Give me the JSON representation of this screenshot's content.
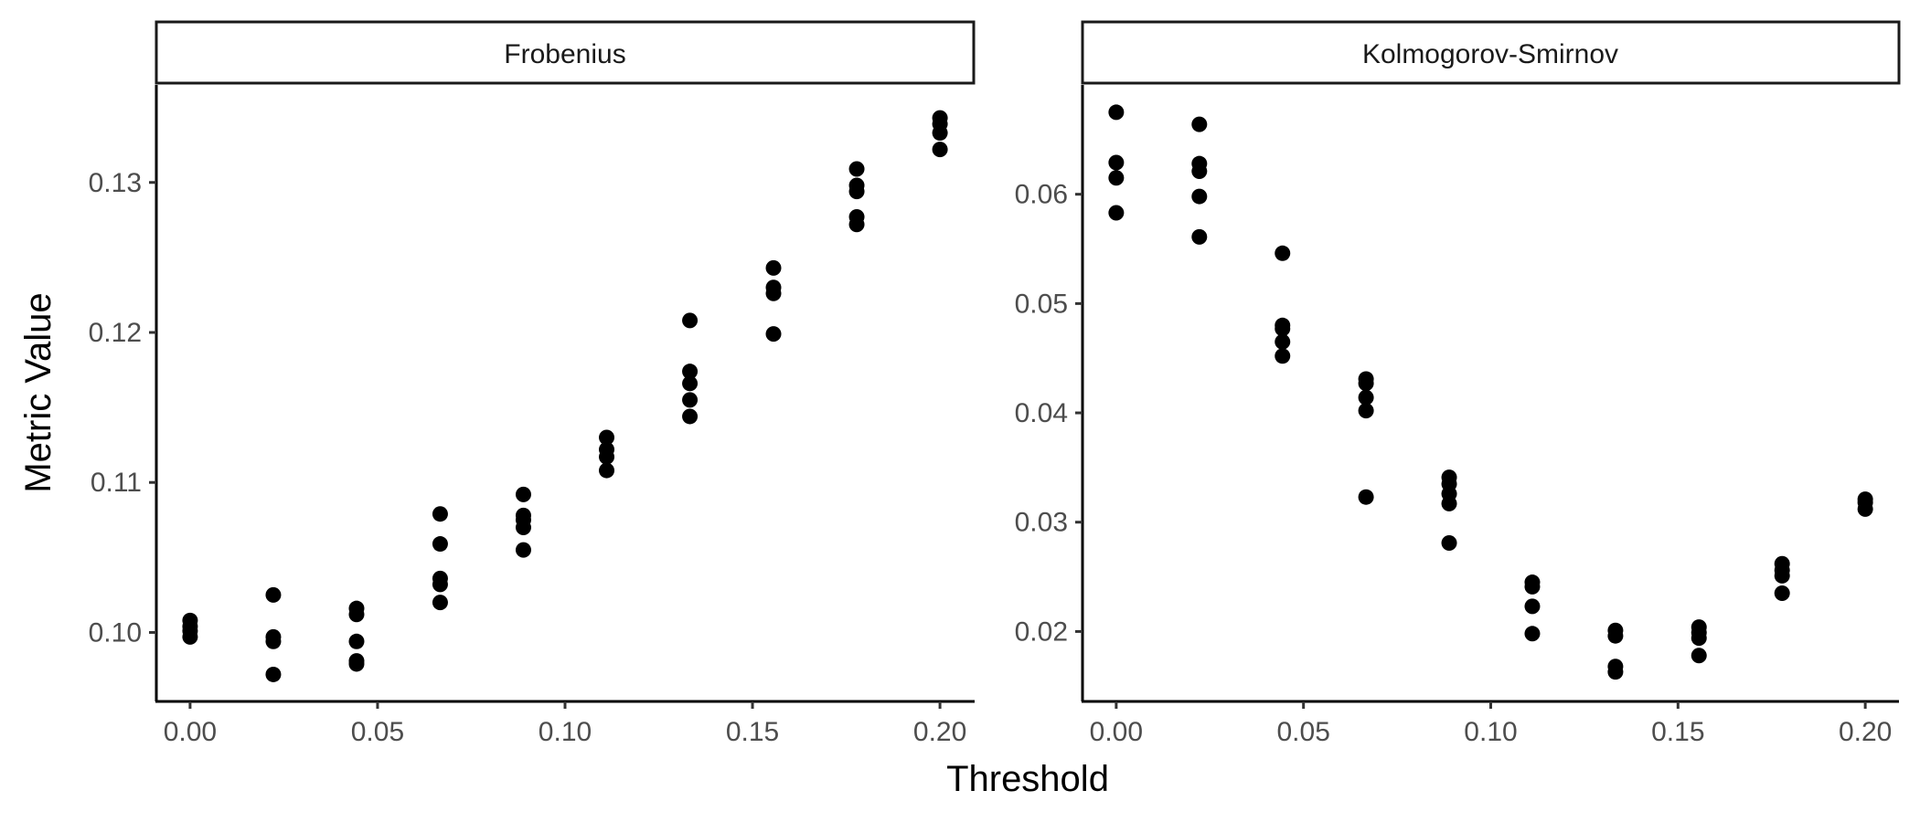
{
  "chart_data": {
    "type": "scatter",
    "xlabel": "Threshold",
    "ylabel": "Metric Value",
    "panels": [
      {
        "name": "Frobenius",
        "xlim": [
          -0.009,
          0.209
        ],
        "ylim": [
          0.0954,
          0.1365
        ],
        "x_ticks": [
          0.0,
          0.05,
          0.1,
          0.15,
          0.2
        ],
        "x_tick_labels": [
          "0.00",
          "0.05",
          "0.10",
          "0.15",
          "0.20"
        ],
        "y_ticks": [
          0.1,
          0.11,
          0.12,
          0.13
        ],
        "y_tick_labels": [
          "0.10",
          "0.11",
          "0.12",
          "0.13"
        ],
        "points": [
          [
            0.0,
            0.1008
          ],
          [
            0.0,
            0.1004
          ],
          [
            0.0,
            0.1001
          ],
          [
            0.0,
            0.0997
          ],
          [
            0.0222,
            0.1025
          ],
          [
            0.0222,
            0.0997
          ],
          [
            0.0222,
            0.0994
          ],
          [
            0.0222,
            0.0972
          ],
          [
            0.0444,
            0.1016
          ],
          [
            0.0444,
            0.1012
          ],
          [
            0.0444,
            0.0994
          ],
          [
            0.0444,
            0.0981
          ],
          [
            0.0444,
            0.0979
          ],
          [
            0.0667,
            0.1079
          ],
          [
            0.0667,
            0.1059
          ],
          [
            0.0667,
            0.1036
          ],
          [
            0.0667,
            0.1032
          ],
          [
            0.0667,
            0.102
          ],
          [
            0.0889,
            0.1092
          ],
          [
            0.0889,
            0.1078
          ],
          [
            0.0889,
            0.1075
          ],
          [
            0.0889,
            0.107
          ],
          [
            0.0889,
            0.1055
          ],
          [
            0.1111,
            0.113
          ],
          [
            0.1111,
            0.1122
          ],
          [
            0.1111,
            0.1117
          ],
          [
            0.1111,
            0.1108
          ],
          [
            0.1333,
            0.1208
          ],
          [
            0.1333,
            0.1174
          ],
          [
            0.1333,
            0.1166
          ],
          [
            0.1333,
            0.1155
          ],
          [
            0.1333,
            0.1144
          ],
          [
            0.1556,
            0.1243
          ],
          [
            0.1556,
            0.123
          ],
          [
            0.1556,
            0.1226
          ],
          [
            0.1556,
            0.1199
          ],
          [
            0.1778,
            0.1309
          ],
          [
            0.1778,
            0.1298
          ],
          [
            0.1778,
            0.1294
          ],
          [
            0.1778,
            0.1277
          ],
          [
            0.1778,
            0.1272
          ],
          [
            0.2,
            0.1343
          ],
          [
            0.2,
            0.1339
          ],
          [
            0.2,
            0.1333
          ],
          [
            0.2,
            0.1322
          ]
        ]
      },
      {
        "name": "Kolmogorov-Smirnov",
        "xlim": [
          -0.009,
          0.209
        ],
        "ylim": [
          0.0136,
          0.07
        ],
        "x_ticks": [
          0.0,
          0.05,
          0.1,
          0.15,
          0.2
        ],
        "x_tick_labels": [
          "0.00",
          "0.05",
          "0.10",
          "0.15",
          "0.20"
        ],
        "y_ticks": [
          0.02,
          0.03,
          0.04,
          0.05,
          0.06
        ],
        "y_tick_labels": [
          "0.02",
          "0.03",
          "0.04",
          "0.05",
          "0.06"
        ],
        "points": [
          [
            0.0,
            0.0675
          ],
          [
            0.0,
            0.0629
          ],
          [
            0.0,
            0.0615
          ],
          [
            0.0,
            0.0583
          ],
          [
            0.0222,
            0.0664
          ],
          [
            0.0222,
            0.0628
          ],
          [
            0.0222,
            0.0621
          ],
          [
            0.0222,
            0.0598
          ],
          [
            0.0222,
            0.0561
          ],
          [
            0.0444,
            0.0546
          ],
          [
            0.0444,
            0.048
          ],
          [
            0.0444,
            0.0477
          ],
          [
            0.0444,
            0.0465
          ],
          [
            0.0444,
            0.0452
          ],
          [
            0.0667,
            0.0431
          ],
          [
            0.0667,
            0.0427
          ],
          [
            0.0667,
            0.0414
          ],
          [
            0.0667,
            0.0402
          ],
          [
            0.0667,
            0.0323
          ],
          [
            0.0889,
            0.0341
          ],
          [
            0.0889,
            0.0335
          ],
          [
            0.0889,
            0.0326
          ],
          [
            0.0889,
            0.0317
          ],
          [
            0.0889,
            0.0281
          ],
          [
            0.1111,
            0.0245
          ],
          [
            0.1111,
            0.0241
          ],
          [
            0.1111,
            0.0223
          ],
          [
            0.1111,
            0.0198
          ],
          [
            0.1333,
            0.0201
          ],
          [
            0.1333,
            0.0196
          ],
          [
            0.1333,
            0.0168
          ],
          [
            0.1333,
            0.0163
          ],
          [
            0.1556,
            0.0204
          ],
          [
            0.1556,
            0.0199
          ],
          [
            0.1556,
            0.0194
          ],
          [
            0.1556,
            0.0178
          ],
          [
            0.1778,
            0.0262
          ],
          [
            0.1778,
            0.0256
          ],
          [
            0.1778,
            0.0251
          ],
          [
            0.1778,
            0.0235
          ],
          [
            0.2,
            0.0321
          ],
          [
            0.2,
            0.0318
          ],
          [
            0.2,
            0.0312
          ]
        ]
      }
    ]
  }
}
